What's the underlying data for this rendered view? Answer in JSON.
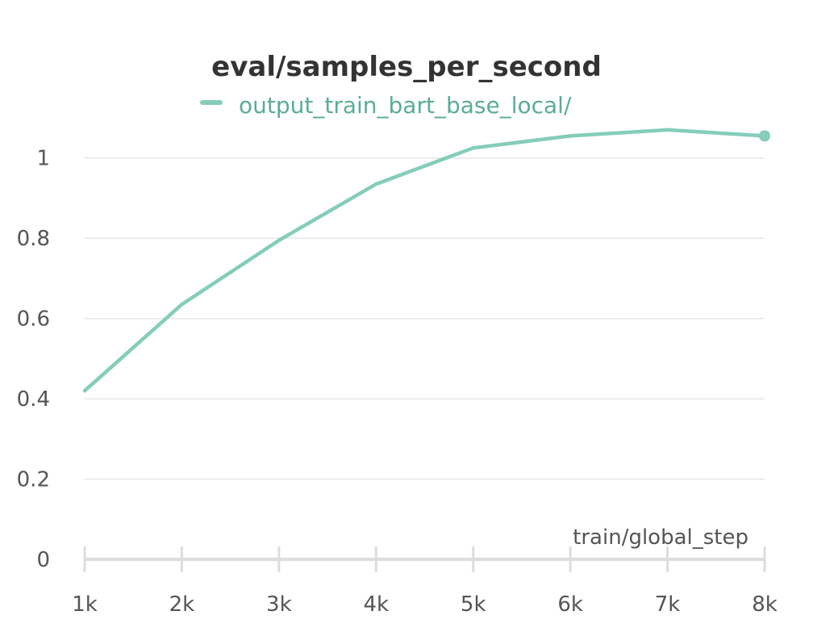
{
  "chart_data": {
    "type": "line",
    "title": "eval/samples_per_second",
    "xlabel": "train/global_step",
    "ylabel": "",
    "x_tick_labels": [
      "1k",
      "2k",
      "3k",
      "4k",
      "5k",
      "6k",
      "7k",
      "8k"
    ],
    "x_ticks": [
      1000,
      2000,
      3000,
      4000,
      5000,
      6000,
      7000,
      8000
    ],
    "y_tick_labels": [
      "0",
      "0.2",
      "0.4",
      "0.6",
      "0.8",
      "1"
    ],
    "y_ticks": [
      0,
      0.2,
      0.4,
      0.6,
      0.8,
      1.0
    ],
    "xlim": [
      1000,
      8000
    ],
    "ylim": [
      0,
      1.1
    ],
    "grid": true,
    "legend_position": "top-center",
    "series": [
      {
        "name": "output_train_bart_base_local/",
        "color": "#84cdb9",
        "x": [
          1000,
          2000,
          3000,
          4000,
          5000,
          6000,
          7000,
          8000
        ],
        "y": [
          0.42,
          0.635,
          0.795,
          0.935,
          1.025,
          1.055,
          1.07,
          1.055
        ]
      }
    ]
  },
  "colors": {
    "grid": "#e6e6e6",
    "axis": "#dddddd",
    "title": "#333333",
    "tick_text": "#555555",
    "legend_text": "#5aad96"
  }
}
